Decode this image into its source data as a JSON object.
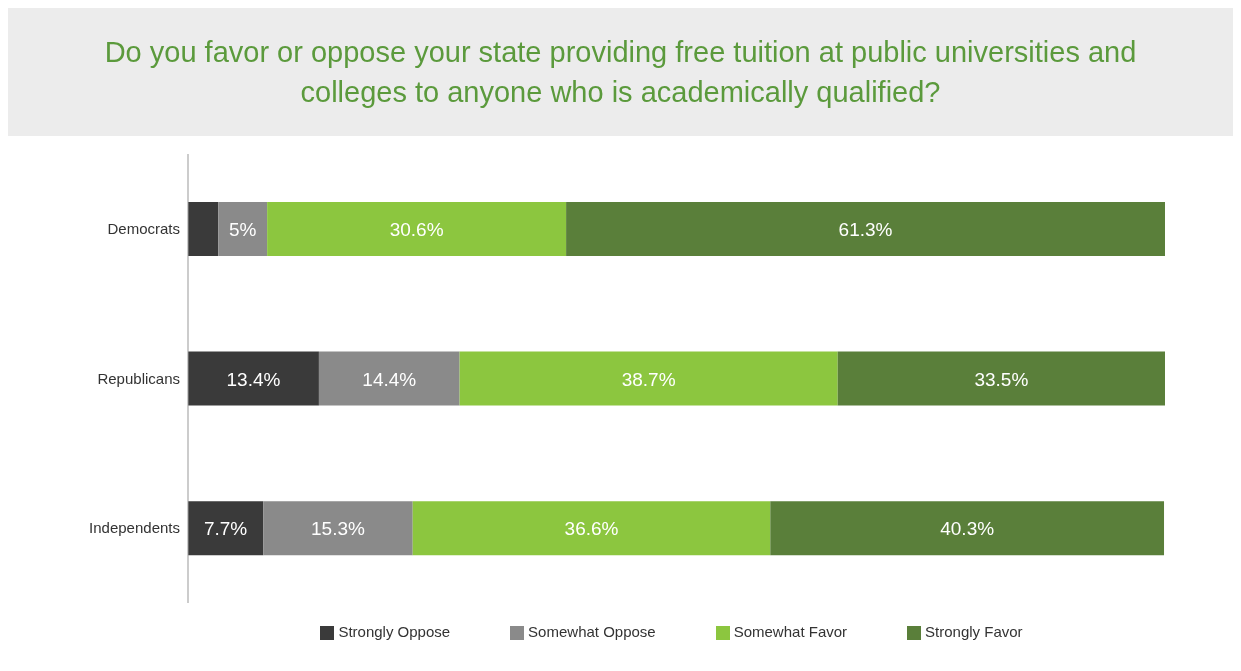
{
  "chart_data": {
    "type": "bar",
    "title": "Do you favor or oppose your state providing free tuition at public universities and colleges to anyone who is academically qualified?",
    "orientation": "horizontal",
    "stacked": true,
    "categories": [
      "Democrats",
      "Republicans",
      "Independents"
    ],
    "tick_labels": "y",
    "legend": "bottom",
    "grid": false,
    "series": [
      {
        "name": "Strongly Oppose",
        "color": "#3a3a3a",
        "values": [
          3.1,
          13.4,
          7.7
        ],
        "value_labels": [
          null,
          "13.4%",
          "7.7%"
        ]
      },
      {
        "name": "Somewhat Oppose",
        "color": "#8a8a8a",
        "values": [
          5,
          14.4,
          15.3
        ],
        "value_labels": [
          "5%",
          "14.4%",
          "15.3%"
        ]
      },
      {
        "name": "Somewhat Favor",
        "color": "#8cc63f",
        "values": [
          30.6,
          38.7,
          36.6
        ],
        "value_labels": [
          "30.6%",
          "38.7%",
          "36.6%"
        ]
      },
      {
        "name": "Strongly Favor",
        "color": "#5a7f3a",
        "values": [
          61.3,
          33.5,
          40.3
        ],
        "value_labels": [
          "61.3%",
          "33.5%",
          "40.3%"
        ]
      }
    ]
  }
}
